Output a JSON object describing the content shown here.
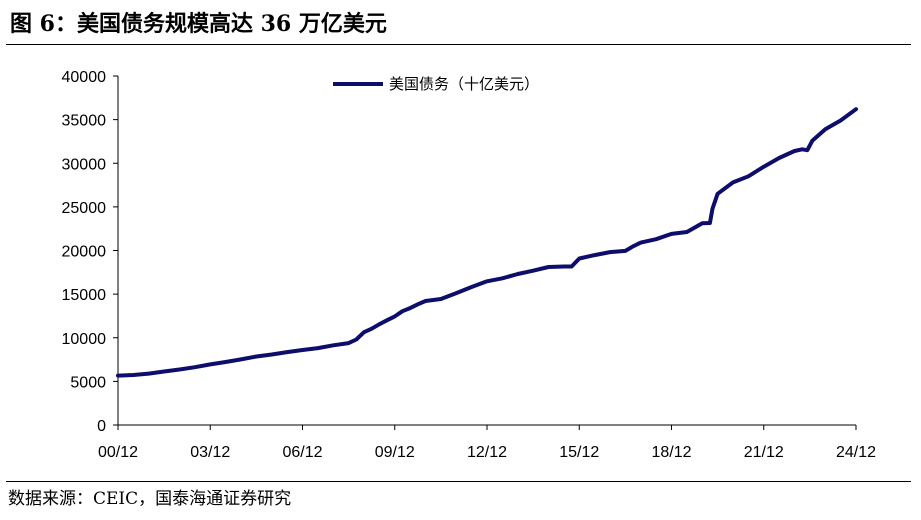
{
  "figure": {
    "title": "图 6：美国债务规模高达 36 万亿美元",
    "source": "数据来源：CEIC，国泰海通证券研究"
  },
  "chart_data": {
    "type": "line",
    "title": "",
    "xlabel": "",
    "ylabel": "",
    "ylim": [
      0,
      40000
    ],
    "y_ticks": [
      0,
      5000,
      10000,
      15000,
      20000,
      25000,
      30000,
      35000,
      40000
    ],
    "x_ticks": [
      "00/12",
      "03/12",
      "06/12",
      "09/12",
      "12/12",
      "15/12",
      "18/12",
      "21/12",
      "24/12"
    ],
    "x_range": [
      "2000-12",
      "2024-12"
    ],
    "grid": false,
    "legend_position": "top",
    "line_color": "#0d0d6b",
    "series": [
      {
        "name": "美国债务（十亿美元）",
        "x": [
          "2000-12",
          "2001-06",
          "2001-12",
          "2002-06",
          "2002-12",
          "2003-06",
          "2003-12",
          "2004-06",
          "2004-12",
          "2005-06",
          "2005-12",
          "2006-06",
          "2006-12",
          "2007-06",
          "2007-12",
          "2008-06",
          "2008-09",
          "2008-12",
          "2009-03",
          "2009-06",
          "2009-09",
          "2009-12",
          "2010-03",
          "2010-06",
          "2010-09",
          "2010-12",
          "2011-06",
          "2011-12",
          "2012-06",
          "2012-12",
          "2013-06",
          "2013-12",
          "2014-06",
          "2014-12",
          "2015-06",
          "2015-09",
          "2015-12",
          "2016-06",
          "2016-12",
          "2017-06",
          "2017-09",
          "2017-12",
          "2018-06",
          "2018-12",
          "2019-06",
          "2019-12",
          "2020-03",
          "2020-04",
          "2020-06",
          "2020-12",
          "2021-06",
          "2021-12",
          "2022-06",
          "2022-12",
          "2023-03",
          "2023-05",
          "2023-07",
          "2023-12",
          "2024-06",
          "2024-12"
        ],
        "values": [
          5660,
          5730,
          5890,
          6130,
          6360,
          6620,
          6940,
          7220,
          7520,
          7850,
          8080,
          8350,
          8600,
          8810,
          9140,
          9390,
          9800,
          10640,
          11040,
          11550,
          12010,
          12450,
          13040,
          13400,
          13830,
          14210,
          14440,
          15120,
          15820,
          16470,
          16810,
          17310,
          17690,
          18110,
          18170,
          18170,
          19080,
          19470,
          19820,
          19950,
          20480,
          20900,
          21300,
          21900,
          22120,
          23120,
          23150,
          24800,
          26500,
          27800,
          28500,
          29600,
          30600,
          31400,
          31600,
          31500,
          32600,
          33900,
          34900,
          36200
        ]
      }
    ]
  }
}
